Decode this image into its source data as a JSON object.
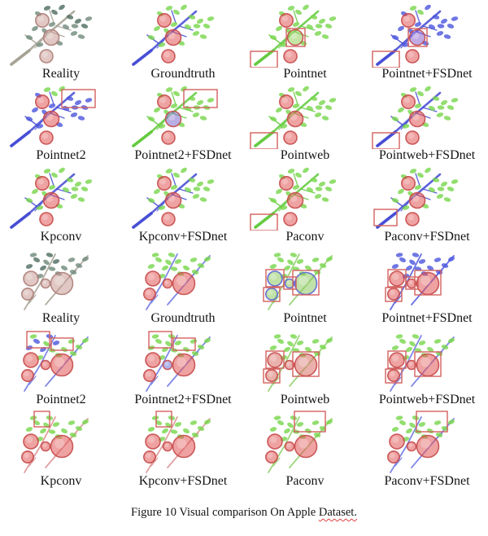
{
  "figure": {
    "caption_before": "Figure 10 Visual comparison On Apple ",
    "caption_flagged_word": "Dataset."
  },
  "palette": {
    "highlight_box": "#d2605e",
    "groundtruth_blue": "#4148d2",
    "blue_leaf": "#4b55dd",
    "green_leaf": "#77d64b",
    "green_branch": "#5fc93a",
    "red_apple": "#e25555",
    "red_apple_rim": "#c64a4a",
    "reality_branch": "#a39f90",
    "reality_leaf": "#6f8a7b",
    "reality_leaf_dark": "#4d6b5e",
    "reality_apple": "#c89a94",
    "reality_apple_rim": "#ad7d78",
    "light_blue_branch": "#6b74e0",
    "pink_branch": "#dc9090",
    "pale_green_branch": "#8fce6a",
    "wrong_green_apple": "#8cc95e",
    "wrong_blue_rim": "#5a62d8"
  },
  "cells": [
    {
      "label": "Reality",
      "scene": 1,
      "branch": "#a39f90",
      "leaf": "#6f8a7b",
      "leaf2": "#4d6b5e",
      "leaf2_count": 6,
      "apple": "#c89a94",
      "apple_rim": "#ad7d78",
      "boxes": []
    },
    {
      "label": "Groundtruth",
      "scene": 1,
      "branch": "#4148d2",
      "leaf": "#77d64b",
      "apple": "#e25555",
      "boxes": []
    },
    {
      "label": "Pointnet",
      "scene": 1,
      "branch": "#5fc93a",
      "leaf": "#77d64b",
      "apple": "#e25555",
      "apples": [
        "#e25555",
        "#94cf5c",
        "#e25555"
      ],
      "boxes": [
        [
          52,
          33,
          23,
          22
        ],
        [
          8,
          61,
          33,
          20
        ]
      ]
    },
    {
      "label": "Pointnet+FSDnet",
      "scene": 1,
      "branch": "#4148d2",
      "leaf": "#4b55dd",
      "leaf2": "#77d64b",
      "leaf2_count": 2,
      "apple": "#e25555",
      "apples": [
        "#e25555",
        "#8a65cc",
        "#e25555"
      ],
      "boxes": [
        [
          52,
          33,
          23,
          22
        ],
        [
          8,
          61,
          33,
          20
        ]
      ]
    },
    {
      "label": "Pointnet2",
      "scene": 1,
      "branch": "#4148d2",
      "leaf": "#4b55dd",
      "leaf2": "#77d64b",
      "leaf2_count": 3,
      "apple": "#e25555",
      "boxes": [
        [
          76,
          8,
          41,
          22
        ]
      ]
    },
    {
      "label": "Pointnet2+FSDnet",
      "scene": 1,
      "branch": "#5fc93a",
      "leaf": "#77d64b",
      "apple": "#e25555",
      "apples": [
        "#e25555",
        "#7e6bd0",
        "#e25555"
      ],
      "boxes": [
        [
          76,
          8,
          41,
          22
        ]
      ]
    },
    {
      "label": "Pointweb",
      "scene": 1,
      "branch": "#5fc93a",
      "leaf": "#77d64b",
      "apple": "#e25555",
      "boxes": [
        [
          8,
          61,
          33,
          20
        ]
      ]
    },
    {
      "label": "Pointweb+FSDnet",
      "scene": 1,
      "branch": "#4148d2",
      "leaf": "#77d64b",
      "apple": "#e25555",
      "boxes": [
        [
          8,
          61,
          33,
          20
        ]
      ]
    },
    {
      "label": "Kpconv",
      "scene": 1,
      "branch": "#4148d2",
      "leaf": "#77d64b",
      "apple": "#e25555",
      "boxes": []
    },
    {
      "label": "Kpconv+FSDnet",
      "scene": 1,
      "branch": "#4148d2",
      "leaf": "#77d64b",
      "apple": "#e25555",
      "boxes": []
    },
    {
      "label": "Paconv",
      "scene": 1,
      "branch": "#5fc93a",
      "leaf": "#77d64b",
      "apple": "#e25555",
      "boxes": [
        [
          8,
          61,
          33,
          20
        ]
      ]
    },
    {
      "label": "Paconv+FSDnet",
      "scene": 1,
      "branch": "#4148d2",
      "leaf": "#77d64b",
      "apple": "#e25555",
      "boxes": [
        [
          10,
          55,
          28,
          20
        ]
      ]
    },
    {
      "label": "Reality",
      "scene": 2,
      "branch": "#a39f90",
      "leaf": "#6f8a7b",
      "leaf2": "#4d6b5e",
      "leaf2_count": 5,
      "apple": "#c89a94",
      "apple_rim": "#ad7d78",
      "boxes": []
    },
    {
      "label": "Groundtruth",
      "scene": 2,
      "branch": "#6b74e0",
      "leaf": "#77d64b",
      "apple": "#e25555",
      "boxes": []
    },
    {
      "label": "Pointnet",
      "scene": 2,
      "branch": "#8fce6a",
      "leaf": "#77d64b",
      "apple": "#8cc95e",
      "apple_rim": "#5a62d8",
      "boxes": [
        [
          27,
          29,
          22,
          21
        ],
        [
          24,
          51,
          20,
          17
        ],
        [
          49,
          38,
          15,
          15
        ],
        [
          60,
          30,
          32,
          30
        ]
      ]
    },
    {
      "label": "Pointnet+FSDnet",
      "scene": 2,
      "branch": "#4b55dd",
      "leaf": "#4b55dd",
      "apple": "#e25555",
      "boxes": [
        [
          27,
          29,
          22,
          21
        ],
        [
          24,
          51,
          20,
          17
        ],
        [
          49,
          38,
          15,
          15
        ],
        [
          60,
          30,
          32,
          30
        ]
      ]
    },
    {
      "label": "Pointnet2",
      "scene": 2,
      "branch": "#6b74e0",
      "leaf": "#77d64b",
      "leaf2": "#4b55dd",
      "leaf2_count": 5,
      "apple": "#e25555",
      "boxes": [
        [
          33,
          5,
          28,
          20
        ],
        [
          63,
          13,
          27,
          15
        ]
      ]
    },
    {
      "label": "Pointnet2+FSDnet",
      "scene": 2,
      "branch": "#6b74e0",
      "leaf": "#77d64b",
      "apple": "#e25555",
      "apples": [
        "#e25555",
        "#e25555",
        "#e25555",
        "#6f77dd"
      ],
      "boxes": [
        [
          33,
          5,
          28,
          20
        ],
        [
          63,
          13,
          27,
          15
        ]
      ]
    },
    {
      "label": "Pointweb",
      "scene": 2,
      "branch": "#8fce6a",
      "leaf": "#77d64b",
      "apple": "#d97066",
      "boxes": [
        [
          27,
          29,
          22,
          21
        ],
        [
          24,
          51,
          20,
          17
        ],
        [
          60,
          30,
          32,
          30
        ]
      ]
    },
    {
      "label": "Pointweb+FSDnet",
      "scene": 2,
      "branch": "#6b74e0",
      "leaf": "#77d64b",
      "apple": "#e25555",
      "boxes": [
        [
          27,
          29,
          22,
          21
        ],
        [
          24,
          51,
          20,
          17
        ],
        [
          60,
          30,
          32,
          30
        ]
      ]
    },
    {
      "label": "Kpconv",
      "scene": 2,
      "branch": "#dc9090",
      "leaf": "#77d64b",
      "apple": "#e25555",
      "boxes": [
        [
          42,
          3,
          19,
          19
        ]
      ]
    },
    {
      "label": "Kpconv+FSDnet",
      "scene": 2,
      "branch": "#dc9090",
      "leaf": "#77d64b",
      "apple": "#e25555",
      "boxes": [
        [
          42,
          3,
          19,
          19
        ]
      ]
    },
    {
      "label": "Paconv",
      "scene": 2,
      "branch": "#8fce6a",
      "leaf": "#77d64b",
      "apple": "#e25555",
      "boxes": [
        [
          62,
          3,
          38,
          25
        ]
      ]
    },
    {
      "label": "Paconv+FSDnet",
      "scene": 2,
      "branch": "#6b74e0",
      "leaf": "#77d64b",
      "apple": "#e25555",
      "boxes": [
        [
          62,
          3,
          38,
          25
        ]
      ]
    }
  ]
}
